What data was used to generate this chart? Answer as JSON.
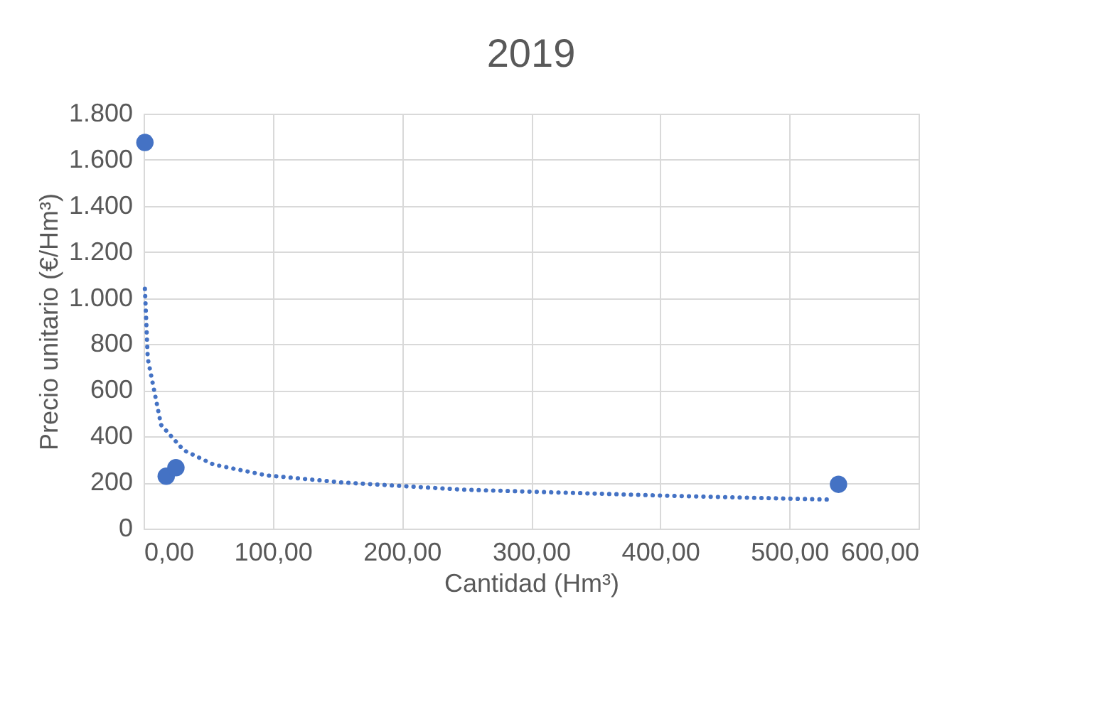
{
  "chart_data": {
    "type": "scatter",
    "title": "2019",
    "xlabel": "Cantidad (Hm³)",
    "ylabel": "Precio unitario (€/Hm³)",
    "xlim": [
      0,
      600
    ],
    "ylim": [
      0,
      1800
    ],
    "xticks": [
      {
        "value": 0,
        "label": "0,00"
      },
      {
        "value": 100,
        "label": "100,00"
      },
      {
        "value": 200,
        "label": "200,00"
      },
      {
        "value": 300,
        "label": "300,00"
      },
      {
        "value": 400,
        "label": "400,00"
      },
      {
        "value": 500,
        "label": "500,00"
      },
      {
        "value": 600,
        "label": "600,00"
      }
    ],
    "yticks": [
      0,
      200,
      400,
      600,
      800,
      {
        "value": 1000,
        "label": "1.000"
      },
      {
        "value": 1200,
        "label": "1.200"
      },
      {
        "value": 1400,
        "label": "1.400"
      },
      {
        "value": 1600,
        "label": "1.600"
      },
      {
        "value": 1800,
        "label": "1.800"
      }
    ],
    "grid": true,
    "marker": "circle",
    "series": [
      {
        "color": "#4472c4",
        "x": [
          1,
          17.5,
          25,
          538
        ],
        "values": [
          1675,
          227,
          264,
          192
        ]
      },
      {
        "type": "line",
        "color": "#4472c4",
        "line_style": "dotted",
        "marker": "none",
        "x": [
          1,
          3.2,
          13.5,
          31,
          54,
          95,
          154,
          247,
          397,
          529
        ],
        "values": [
          1040,
          738,
          450,
          340,
          278,
          231,
          200,
          169,
          144,
          126
        ]
      }
    ]
  }
}
